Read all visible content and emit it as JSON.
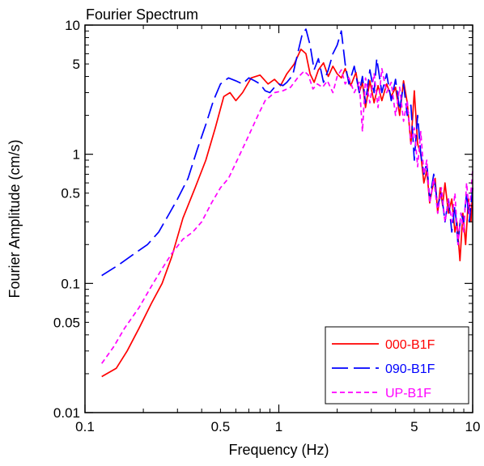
{
  "chart_data": {
    "type": "line",
    "title": "Fourier Spectrum",
    "xlabel": "Frequency (Hz)",
    "ylabel": "Fourier Amplitude (cm/s)",
    "xscale": "log",
    "yscale": "log",
    "xlim": [
      0.1,
      10
    ],
    "ylim": [
      0.01,
      10
    ],
    "x_ticks": [
      {
        "value": 0.1,
        "label": "0.1"
      },
      {
        "value": 0.5,
        "label": "0.5"
      },
      {
        "value": 1,
        "label": "1"
      },
      {
        "value": 5,
        "label": "5"
      },
      {
        "value": 10,
        "label": "10"
      }
    ],
    "y_ticks": [
      {
        "value": 0.01,
        "label": "0.01"
      },
      {
        "value": 0.05,
        "label": "0.05"
      },
      {
        "value": 0.1,
        "label": "0.1"
      },
      {
        "value": 0.5,
        "label": "0.5"
      },
      {
        "value": 1,
        "label": "1"
      },
      {
        "value": 5,
        "label": "5"
      },
      {
        "value": 10,
        "label": "10"
      }
    ],
    "grid": false,
    "legend_position": "bottom-right",
    "series": [
      {
        "name": "000-B1F",
        "color": "#ff0000",
        "dash": "solid",
        "x": [
          0.122,
          0.145,
          0.165,
          0.19,
          0.22,
          0.25,
          0.28,
          0.32,
          0.37,
          0.42,
          0.47,
          0.52,
          0.56,
          0.6,
          0.65,
          0.72,
          0.8,
          0.88,
          0.95,
          1.02,
          1.1,
          1.2,
          1.3,
          1.38,
          1.45,
          1.52,
          1.6,
          1.7,
          1.8,
          1.9,
          2.0,
          2.1,
          2.2,
          2.35,
          2.5,
          2.6,
          2.7,
          2.8,
          2.95,
          3.1,
          3.25,
          3.4,
          3.6,
          3.8,
          4.0,
          4.2,
          4.4,
          4.6,
          4.8,
          5.0,
          5.2,
          5.4,
          5.6,
          5.8,
          6.0,
          6.2,
          6.4,
          6.6,
          6.8,
          7.0,
          7.2,
          7.5,
          7.8,
          8.1,
          8.3,
          8.6,
          8.9,
          9.2,
          9.5,
          9.8,
          10.0
        ],
        "values": [
          0.019,
          0.022,
          0.03,
          0.045,
          0.07,
          0.1,
          0.16,
          0.32,
          0.55,
          0.9,
          1.6,
          2.8,
          3.0,
          2.6,
          3.0,
          3.9,
          4.1,
          3.5,
          3.8,
          3.4,
          4.2,
          5.0,
          6.5,
          6.0,
          4.2,
          3.6,
          4.5,
          5.1,
          4.0,
          4.8,
          4.2,
          3.9,
          4.6,
          3.4,
          4.3,
          3.0,
          3.6,
          2.3,
          3.7,
          2.5,
          3.4,
          2.6,
          3.5,
          2.8,
          3.3,
          2.0,
          3.7,
          2.5,
          1.2,
          3.1,
          1.2,
          1.0,
          0.6,
          0.75,
          0.42,
          0.55,
          0.65,
          0.35,
          0.55,
          0.4,
          0.6,
          0.35,
          0.45,
          0.25,
          0.3,
          0.15,
          0.35,
          0.2,
          0.45,
          0.3,
          0.55
        ]
      },
      {
        "name": "090-B1F",
        "color": "#0000ff",
        "dash": "long-dash",
        "x": [
          0.122,
          0.15,
          0.18,
          0.21,
          0.24,
          0.27,
          0.3,
          0.34,
          0.38,
          0.42,
          0.46,
          0.5,
          0.55,
          0.6,
          0.65,
          0.7,
          0.75,
          0.8,
          0.85,
          0.9,
          0.95,
          1.0,
          1.05,
          1.1,
          1.18,
          1.25,
          1.32,
          1.38,
          1.45,
          1.52,
          1.6,
          1.7,
          1.8,
          1.9,
          2.0,
          2.1,
          2.2,
          2.3,
          2.45,
          2.6,
          2.7,
          2.8,
          2.95,
          3.1,
          3.2,
          3.4,
          3.6,
          3.8,
          4.0,
          4.2,
          4.4,
          4.6,
          4.8,
          5.0,
          5.2,
          5.4,
          5.6,
          5.8,
          6.0,
          6.3,
          6.6,
          6.9,
          7.2,
          7.5,
          7.8,
          8.1,
          8.4,
          8.7,
          9.0,
          9.3,
          9.6,
          10.0
        ],
        "values": [
          0.115,
          0.14,
          0.17,
          0.2,
          0.25,
          0.34,
          0.45,
          0.65,
          1.1,
          1.7,
          2.6,
          3.5,
          3.9,
          3.7,
          3.5,
          3.9,
          3.7,
          3.5,
          3.1,
          3.0,
          3.3,
          3.5,
          3.4,
          3.6,
          4.1,
          6.0,
          8.5,
          9.3,
          7.0,
          4.5,
          5.5,
          3.6,
          4.5,
          6.0,
          7.0,
          9.0,
          5.0,
          3.5,
          4.8,
          3.0,
          4.0,
          2.5,
          4.5,
          3.0,
          5.5,
          3.0,
          4.2,
          2.6,
          3.8,
          2.2,
          3.5,
          2.0,
          2.4,
          0.9,
          2.0,
          1.0,
          0.7,
          0.85,
          0.45,
          0.7,
          0.4,
          0.5,
          0.3,
          0.45,
          0.25,
          0.4,
          0.2,
          0.35,
          0.3,
          0.5,
          0.3,
          0.55
        ]
      },
      {
        "name": "UP-B1F",
        "color": "#ff00ff",
        "dash": "short-dash",
        "x": [
          0.122,
          0.14,
          0.16,
          0.19,
          0.22,
          0.25,
          0.28,
          0.32,
          0.36,
          0.4,
          0.45,
          0.5,
          0.55,
          0.62,
          0.7,
          0.78,
          0.85,
          0.95,
          1.05,
          1.15,
          1.25,
          1.35,
          1.42,
          1.5,
          1.58,
          1.68,
          1.78,
          1.9,
          2.0,
          2.1,
          2.2,
          2.3,
          2.45,
          2.6,
          2.7,
          2.8,
          2.95,
          3.1,
          3.25,
          3.4,
          3.6,
          3.8,
          4.0,
          4.2,
          4.4,
          4.6,
          4.8,
          5.0,
          5.2,
          5.4,
          5.6,
          5.8,
          6.0,
          6.3,
          6.6,
          6.9,
          7.2,
          7.5,
          7.8,
          8.1,
          8.4,
          8.7,
          9.0,
          9.3,
          9.6,
          10.0
        ],
        "values": [
          0.024,
          0.032,
          0.045,
          0.065,
          0.095,
          0.13,
          0.17,
          0.22,
          0.25,
          0.3,
          0.42,
          0.55,
          0.65,
          0.95,
          1.4,
          2.0,
          2.6,
          3.0,
          3.1,
          3.3,
          3.9,
          4.4,
          4.1,
          3.2,
          3.5,
          3.3,
          3.7,
          3.0,
          4.0,
          4.5,
          3.5,
          3.9,
          3.0,
          3.6,
          1.5,
          3.9,
          2.5,
          4.2,
          2.3,
          4.6,
          3.0,
          3.6,
          2.0,
          3.3,
          1.8,
          2.6,
          1.2,
          1.6,
          0.8,
          1.5,
          0.7,
          0.9,
          0.42,
          0.65,
          0.35,
          0.55,
          0.3,
          0.45,
          0.3,
          0.5,
          0.2,
          0.35,
          0.25,
          0.6,
          0.35,
          0.75
        ]
      }
    ]
  }
}
